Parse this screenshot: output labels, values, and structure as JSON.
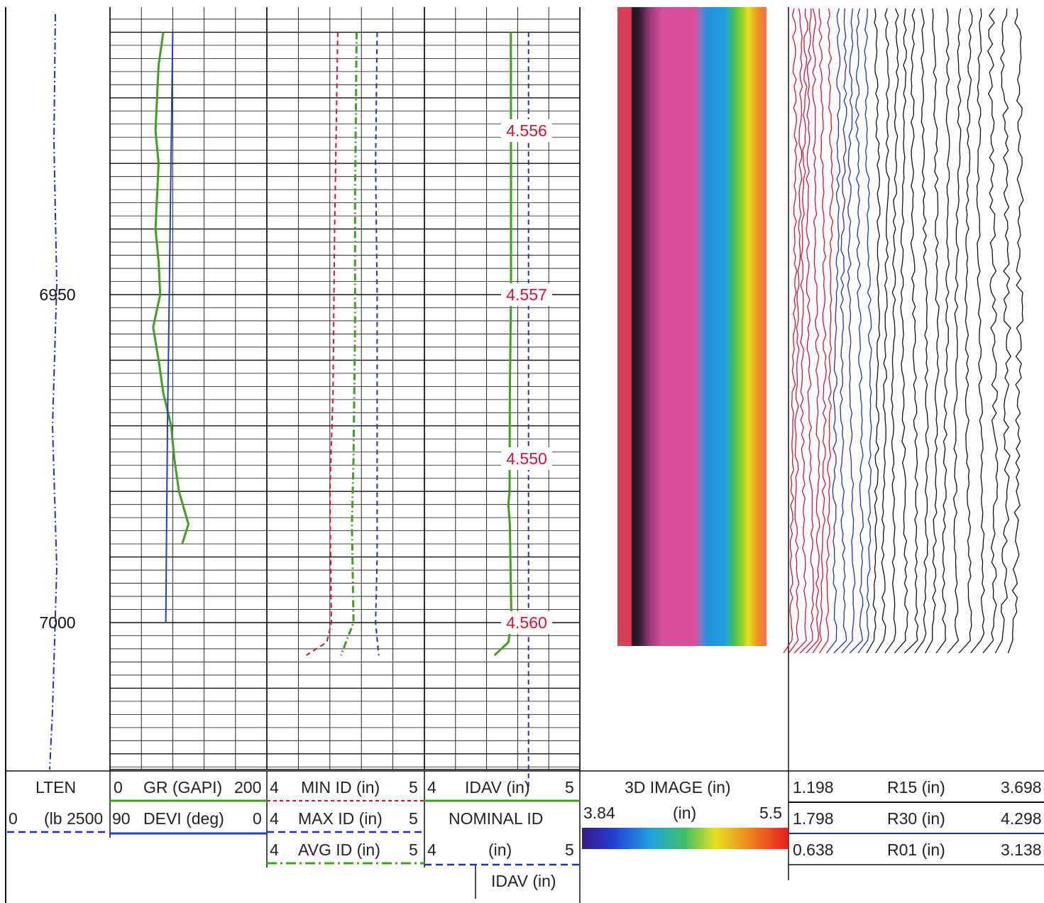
{
  "chart_data": {
    "type": "line",
    "title": "",
    "depth_axis": {
      "ticks": [
        6950,
        7000
      ],
      "range": [
        6910,
        7025
      ]
    },
    "tracks": [
      {
        "name": "depth-track",
        "curves": [
          {
            "mnemonic": "LTEN",
            "unit": "(lb",
            "scale_left": "0",
            "scale_right": "2500",
            "color": "#2030c0",
            "style": "dash-dot"
          }
        ]
      },
      {
        "name": "track-1",
        "curves": [
          {
            "mnemonic": "GR (GAPI)",
            "scale_left": "0",
            "scale_right": "200",
            "color": "#40a020",
            "style": "solid",
            "depth": [
              6910,
              6915,
              6920,
              6925,
              6930,
              6935,
              6940,
              6945,
              6950,
              6955,
              6960,
              6965,
              6970,
              6975,
              6980,
              6985,
              6988
            ],
            "values": [
              68,
              62,
              60,
              58,
              62,
              60,
              58,
              62,
              64,
              55,
              62,
              68,
              78,
              82,
              88,
              100,
              92
            ]
          },
          {
            "mnemonic": "DEVI (deg)",
            "scale_left": "90",
            "scale_right": "0",
            "color": "#2040c0",
            "style": "solid",
            "depth": [
              6910,
              6930,
              6950,
              6970,
              7000
            ],
            "values": [
              54,
              55,
              56,
              57,
              58
            ]
          }
        ]
      },
      {
        "name": "track-2",
        "curves": [
          {
            "mnemonic": "MIN ID (in)",
            "scale_left": "4",
            "scale_right": "5",
            "color": "#e01030",
            "style": "dash",
            "depth": [
              6910,
              6940,
              6965,
              6980,
              7000,
              7003,
              7005
            ],
            "values": [
              4.45,
              4.43,
              4.42,
              4.4,
              4.41,
              4.38,
              4.25
            ]
          },
          {
            "mnemonic": "MAX ID (in)",
            "scale_left": "4",
            "scale_right": "5",
            "color": "#2030c0",
            "style": "dash",
            "depth": [
              6910,
              6930,
              6950,
              6970,
              6990,
              7000,
              7005
            ],
            "values": [
              4.7,
              4.69,
              4.7,
              4.7,
              4.7,
              4.69,
              4.71
            ]
          },
          {
            "mnemonic": "AVG ID (in)",
            "scale_left": "4",
            "scale_right": "5",
            "color": "#40a020",
            "style": "dash-dot",
            "depth": [
              6910,
              6935,
              6955,
              6975,
              6985,
              7000,
              7005
            ],
            "values": [
              4.57,
              4.56,
              4.56,
              4.55,
              4.54,
              4.55,
              4.47
            ]
          }
        ]
      },
      {
        "name": "track-3",
        "curves": [
          {
            "mnemonic": "IDAV (in)",
            "scale_left": "4",
            "scale_right": "5",
            "color": "#40a020",
            "style": "solid",
            "depth": [
              6910,
              6935,
              6950,
              6965,
              6980,
              6982,
              6985,
              7000,
              7003,
              7005
            ],
            "values": [
              4.556,
              4.557,
              4.557,
              4.55,
              4.548,
              4.54,
              4.55,
              4.56,
              4.54,
              4.45
            ]
          },
          {
            "mnemonic": "NOMINAL ID",
            "unit": "(in)",
            "scale_left": "4",
            "scale_right": "5",
            "color": "#2030c0",
            "style": "dash",
            "depth": [
              6910,
              7025
            ],
            "values": [
              4.67,
              4.67
            ]
          }
        ],
        "annotations": [
          {
            "depth": 6925,
            "text": "4.556"
          },
          {
            "depth": 6950,
            "text": "4.557"
          },
          {
            "depth": 6975,
            "text": "4.550"
          },
          {
            "depth": 7000,
            "text": "4.560"
          }
        ],
        "footer": "IDAV (in)"
      },
      {
        "name": "image-track",
        "title": "3D IMAGE (in)",
        "unit": "(in)",
        "scale_left": "3.84",
        "scale_right": "5.5",
        "colors": [
          "#3a1a8a",
          "#2040d0",
          "#20a0e0",
          "#40c060",
          "#e8e020",
          "#f08020",
          "#e82020"
        ]
      },
      {
        "name": "radius-track",
        "curves": [
          {
            "mnemonic": "R15 (in)",
            "scale_left": "1.198",
            "scale_right": "3.698",
            "color": "#111111"
          },
          {
            "mnemonic": "R30 (in)",
            "scale_left": "1.798",
            "scale_right": "4.298",
            "color": "#2030c0"
          },
          {
            "mnemonic": "R01 (in)",
            "scale_left": "0.638",
            "scale_right": "3.138",
            "color": "#e01030"
          }
        ]
      }
    ]
  }
}
